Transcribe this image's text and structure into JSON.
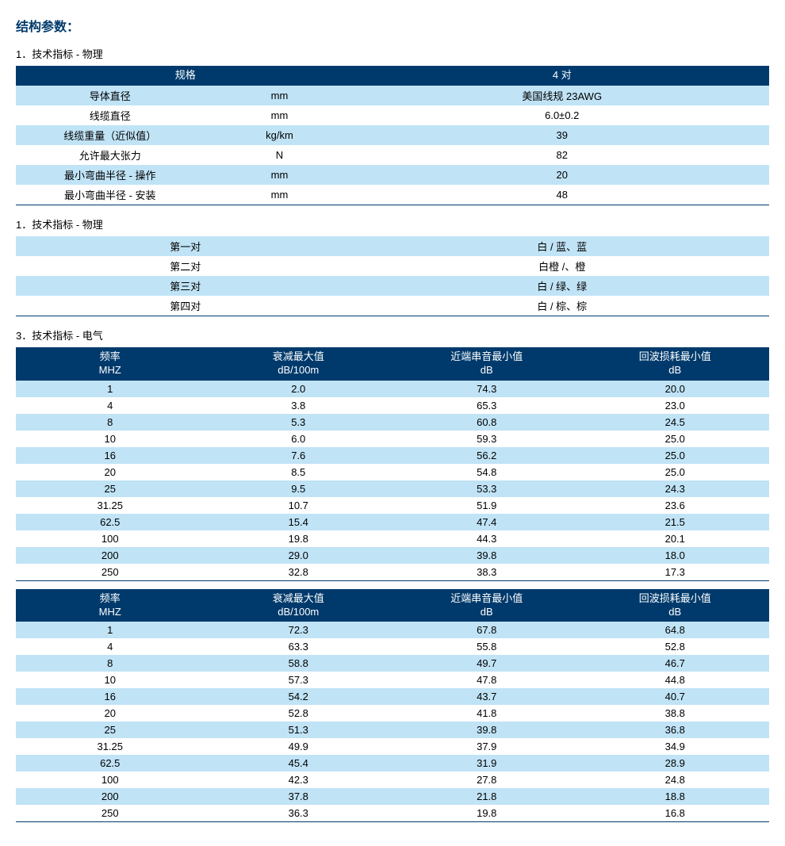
{
  "title": "结构参数：",
  "colors": {
    "header_bg": "#003a6c",
    "header_text": "#ffffff",
    "alt_row_bg": "#c0e3f6",
    "plain_row_bg": "#ffffff",
    "text": "#000000",
    "title_color": "#003a6c"
  },
  "section1": {
    "title": "1．技术指标 - 物理",
    "headers": [
      "规格",
      "",
      "4 对"
    ],
    "rows": [
      [
        "导体直径",
        "mm",
        "美国线规 23AWG"
      ],
      [
        "线缆直径",
        "mm",
        "6.0±0.2"
      ],
      [
        "线缆重量（近似值）",
        "kg/km",
        "39"
      ],
      [
        "允许最大张力",
        "N",
        "82"
      ],
      [
        "最小弯曲半径 - 操作",
        "mm",
        "20"
      ],
      [
        "最小弯曲半径 - 安装",
        "mm",
        "48"
      ]
    ]
  },
  "section2": {
    "title": "1．技术指标 - 物理",
    "rows": [
      [
        "第一对",
        "白 / 蓝、蓝"
      ],
      [
        "第二对",
        "白橙 /、橙"
      ],
      [
        "第三对",
        "白 / 绿、绿"
      ],
      [
        "第四对",
        "白 / 棕、棕"
      ]
    ]
  },
  "section3": {
    "title": "3．技术指标 - 电气",
    "headers": [
      {
        "line1": "频率",
        "line2": "MHZ"
      },
      {
        "line1": "衰减最大值",
        "line2": "dB/100m"
      },
      {
        "line1": "近端串音最小值",
        "line2": "dB"
      },
      {
        "line1": "回波损耗最小值",
        "line2": "dB"
      }
    ],
    "table_a_rows": [
      [
        "1",
        "2.0",
        "74.3",
        "20.0"
      ],
      [
        "4",
        "3.8",
        "65.3",
        "23.0"
      ],
      [
        "8",
        "5.3",
        "60.8",
        "24.5"
      ],
      [
        "10",
        "6.0",
        "59.3",
        "25.0"
      ],
      [
        "16",
        "7.6",
        "56.2",
        "25.0"
      ],
      [
        "20",
        "8.5",
        "54.8",
        "25.0"
      ],
      [
        "25",
        "9.5",
        "53.3",
        "24.3"
      ],
      [
        "31.25",
        "10.7",
        "51.9",
        "23.6"
      ],
      [
        "62.5",
        "15.4",
        "47.4",
        "21.5"
      ],
      [
        "100",
        "19.8",
        "44.3",
        "20.1"
      ],
      [
        "200",
        "29.0",
        "39.8",
        "18.0"
      ],
      [
        "250",
        "32.8",
        "38.3",
        "17.3"
      ]
    ],
    "table_b_rows": [
      [
        "1",
        "72.3",
        "67.8",
        "64.8"
      ],
      [
        "4",
        "63.3",
        "55.8",
        "52.8"
      ],
      [
        "8",
        "58.8",
        "49.7",
        "46.7"
      ],
      [
        "10",
        "57.3",
        "47.8",
        "44.8"
      ],
      [
        "16",
        "54.2",
        "43.7",
        "40.7"
      ],
      [
        "20",
        "52.8",
        "41.8",
        "38.8"
      ],
      [
        "25",
        "51.3",
        "39.8",
        "36.8"
      ],
      [
        "31.25",
        "49.9",
        "37.9",
        "34.9"
      ],
      [
        "62.5",
        "45.4",
        "31.9",
        "28.9"
      ],
      [
        "100",
        "42.3",
        "27.8",
        "24.8"
      ],
      [
        "200",
        "37.8",
        "21.8",
        "18.8"
      ],
      [
        "250",
        "36.3",
        "19.8",
        "16.8"
      ]
    ]
  }
}
